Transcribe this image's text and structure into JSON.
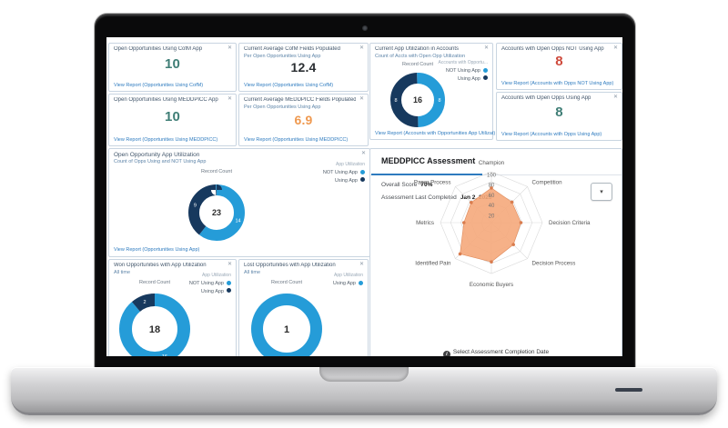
{
  "icons": {
    "close": "✕",
    "caret": "▾",
    "info": "i",
    "webcam": "webcam-dot"
  },
  "colors": {
    "series_light_blue": "#259cd8",
    "series_navy": "#17395e",
    "metric_green": "#3f7e76",
    "metric_red": "#cf4a3c",
    "metric_orange": "#ef9950",
    "metric_dark": "#2b2f33",
    "link_blue": "#2e7bbf",
    "tab_underline": "#2e7bbf",
    "radar_fill": "#f5a97b",
    "radar_marker": "#d97c4e"
  },
  "cards": {
    "opps_cofm": {
      "title": "Open Opportunities Using CofM App",
      "value": "10",
      "link": "View Report (Opportunities Using CofM)"
    },
    "avg_cofm": {
      "title": "Current Average CofM Fields Populated",
      "subtitle": "Per Open Opportunities Using App",
      "value": "12.4",
      "link": "View Report (Opportunities Using CofM)"
    },
    "opps_medd": {
      "title": "Open Opportunities Using MEDDPICC App",
      "value": "10",
      "link": "View Report (Opportunities Using MEDDPICC)"
    },
    "avg_medd": {
      "title": "Current Average MEDDPICC Fields Populated",
      "subtitle": "Per Open Opportunities Using App",
      "value": "6.9",
      "link": "View Report (Opportunities Using MEDDPICC)"
    },
    "acct_util": {
      "title": "Current App Utilization in Accounts",
      "subtitle": "Count of Accts with Open Opp Utilization",
      "link": "View Report (Accounts with Opportunities App Utilizat)"
    },
    "acct_not": {
      "title": "Accounts with Open Opps NOT Using App",
      "value": "8",
      "link": "View Report (Accounts with Opps NOT Using App)"
    },
    "acct_using": {
      "title": "Accounts with Open Opps Using App",
      "value": "8",
      "link": "View Report (Accounts with Opps Using App)"
    },
    "opp_util": {
      "title": "Open Opportunity App Utilization",
      "subtitle": "Count of Opps Using and NOT Using App",
      "link": "View Report (Opportunities Using App)"
    },
    "won_util": {
      "title": "Won Opportunities with App Utilization",
      "subtitle": "All time"
    },
    "lost_util": {
      "title": "Lost Opportunities with App Utilization",
      "subtitle": "All time"
    }
  },
  "meddpicc": {
    "title": "MEDDPICC Assessment",
    "overall_score_label": "Overall Score",
    "overall_score_value": "70%",
    "last_completed_label": "Assessment Last Completed",
    "last_completed_value": "Jan 2, 2025",
    "footer": "Select Assessment Completion Date"
  },
  "chart_data": [
    {
      "id": "accounts-app-utilization",
      "type": "donut",
      "title": "Record Count",
      "center": "16",
      "legend_title": "Accounts with Opportu...",
      "show_segment_labels": true,
      "segments": [
        {
          "label": "NOT Using App",
          "value": 8,
          "color": "#259cd8"
        },
        {
          "label": "Using App",
          "value": 8,
          "color": "#17395e"
        }
      ]
    },
    {
      "id": "open-opp-app-utilization",
      "type": "donut",
      "title": "Record Count",
      "center": "23",
      "legend_title": "App Utilization",
      "show_segment_labels": true,
      "segments": [
        {
          "label": "NOT Using App",
          "value": 14,
          "color": "#259cd8"
        },
        {
          "label": "Using App",
          "value": 9,
          "color": "#17395e"
        }
      ]
    },
    {
      "id": "won-opp-app-utilization",
      "type": "donut",
      "title": "Record Count",
      "center": "18",
      "legend_title": "App Utilization",
      "show_segment_labels": true,
      "segments": [
        {
          "label": "NOT Using App",
          "value": 16,
          "color": "#259cd8"
        },
        {
          "label": "Using App",
          "value": 2,
          "color": "#17395e"
        }
      ]
    },
    {
      "id": "lost-opp-app-utilization",
      "type": "donut",
      "title": "Record Count",
      "center": "1",
      "legend_title": "App Utilization",
      "show_segment_labels": false,
      "segments": [
        {
          "label": "Using App",
          "value": 1,
          "color": "#259cd8"
        }
      ]
    },
    {
      "id": "meddpicc-radar",
      "type": "radar",
      "max": 100,
      "ticks": [
        20,
        40,
        60,
        80,
        100
      ],
      "axes": [
        "Champion",
        "Competition",
        "Decision Criteria",
        "Decision Process",
        "Economic Buyers",
        "Identified Pain",
        "Metrics",
        "Paper Process"
      ],
      "values": [
        68,
        57,
        58,
        61,
        77,
        87,
        54,
        56
      ],
      "fill": "#f5a97b",
      "fill_opacity": 0.9,
      "stroke": "#e08a5a",
      "marker_color": "#d97c4e",
      "grid_color": "#d9d9d9"
    }
  ]
}
